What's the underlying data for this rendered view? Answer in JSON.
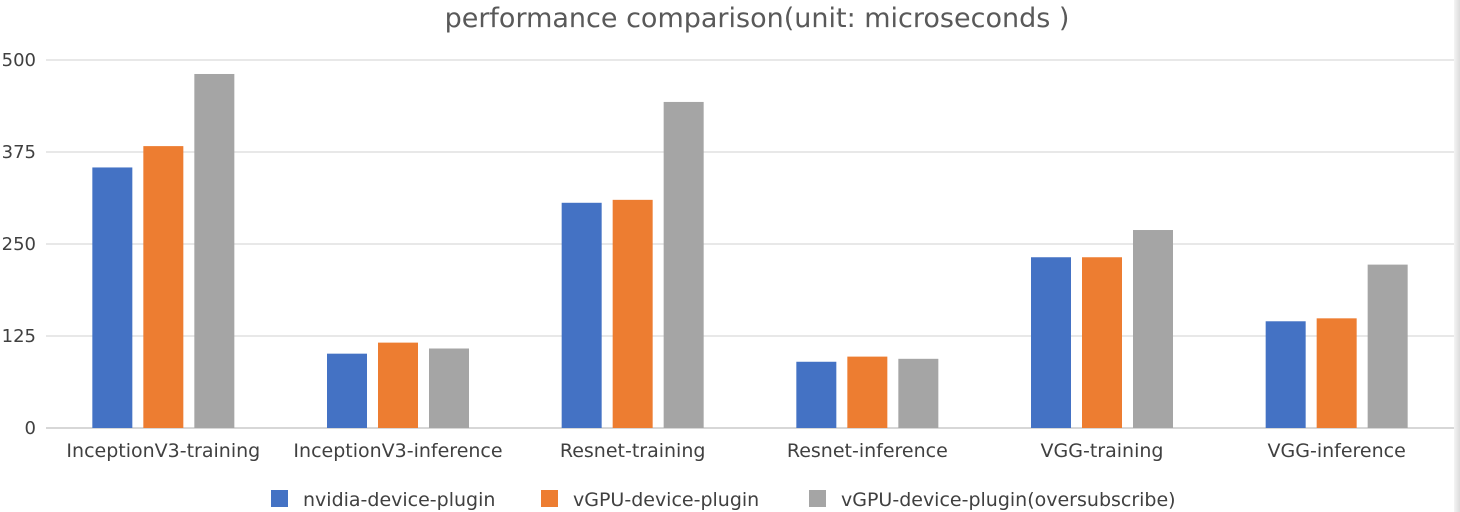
{
  "chart_data": {
    "type": "bar",
    "title": "performance comparison(unit: microseconds )",
    "xlabel": "",
    "ylabel": "",
    "ylim": [
      0,
      500
    ],
    "yticks": [
      "0",
      "125",
      "250",
      "375",
      "500"
    ],
    "grid": true,
    "legend_position": "bottom",
    "categories": [
      "InceptionV3-training",
      "InceptionV3-inference",
      "Resnet-training",
      "Resnet-inference",
      "VGG-training",
      "VGG-inference"
    ],
    "series": [
      {
        "name": "nvidia-device-plugin",
        "color": "#4472c4",
        "values": [
          354,
          101,
          306,
          90,
          232,
          145
        ]
      },
      {
        "name": "vGPU-device-plugin",
        "color": "#ed7d31",
        "values": [
          383,
          116,
          310,
          97,
          232,
          149
        ]
      },
      {
        "name": "vGPU-device-plugin(oversubscribe)",
        "color": "#a5a5a5",
        "values": [
          481,
          108,
          443,
          94,
          269,
          222
        ]
      }
    ]
  }
}
